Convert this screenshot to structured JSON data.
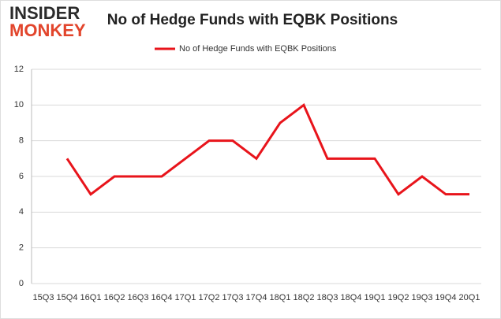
{
  "logo": {
    "top": "INSIDER",
    "bottom": "MONKEY"
  },
  "chart_data": {
    "type": "line",
    "title": "No of Hedge Funds with EQBK Positions",
    "categories": [
      "15Q3",
      "15Q4",
      "16Q1",
      "16Q2",
      "16Q3",
      "16Q4",
      "17Q1",
      "17Q2",
      "17Q3",
      "17Q4",
      "18Q1",
      "18Q2",
      "18Q3",
      "18Q4",
      "19Q1",
      "19Q2",
      "19Q3",
      "19Q4",
      "20Q1"
    ],
    "series": [
      {
        "name": "No of Hedge Funds with EQBK Positions",
        "color": "#e8141b",
        "values": [
          null,
          7,
          5,
          6,
          6,
          6,
          7,
          8,
          8,
          7,
          9,
          10,
          7,
          7,
          7,
          5,
          6,
          5,
          5
        ]
      }
    ],
    "ylim": [
      0,
      12
    ],
    "yticks": [
      0,
      2,
      4,
      6,
      8,
      10,
      12
    ],
    "grid": true,
    "legend": "top"
  }
}
